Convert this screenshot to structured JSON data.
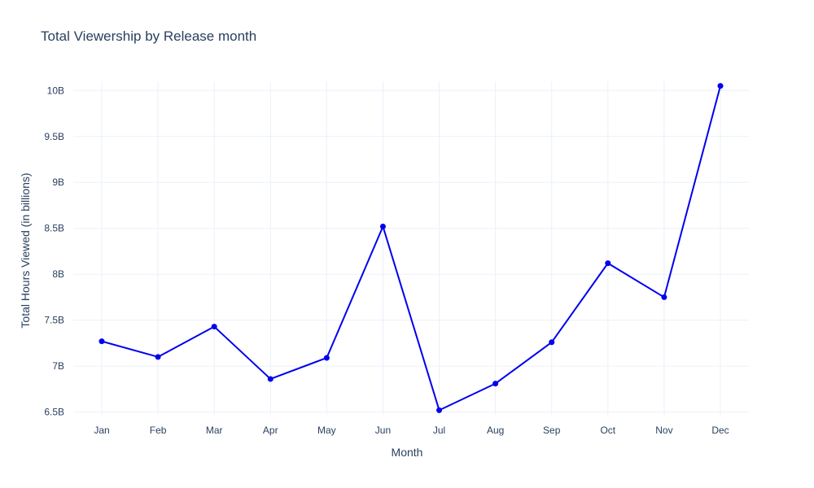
{
  "chart_data": {
    "type": "line",
    "title": "Total Viewership by Release month",
    "xlabel": "Month",
    "ylabel": "Total Hours Viewed (in billions)",
    "categories": [
      "Jan",
      "Feb",
      "Mar",
      "Apr",
      "May",
      "Jun",
      "Jul",
      "Aug",
      "Sep",
      "Oct",
      "Nov",
      "Dec"
    ],
    "series": [
      {
        "values": [
          7.27,
          7.1,
          7.43,
          6.86,
          7.09,
          8.52,
          6.52,
          6.81,
          7.26,
          8.12,
          7.75,
          10.05
        ]
      }
    ],
    "ylim": [
      6.47,
      10.1
    ],
    "yticks": [
      6.5,
      7,
      7.5,
      8,
      8.5,
      9,
      9.5,
      10
    ],
    "ytick_labels": [
      "6.5B",
      "7B",
      "7.5B",
      "8B",
      "8.5B",
      "9B",
      "9.5B",
      "10B"
    ],
    "grid": true,
    "line_color": "#0000ee",
    "grid_color": "#ebf0f8",
    "text_color": "#2a3f5f"
  }
}
